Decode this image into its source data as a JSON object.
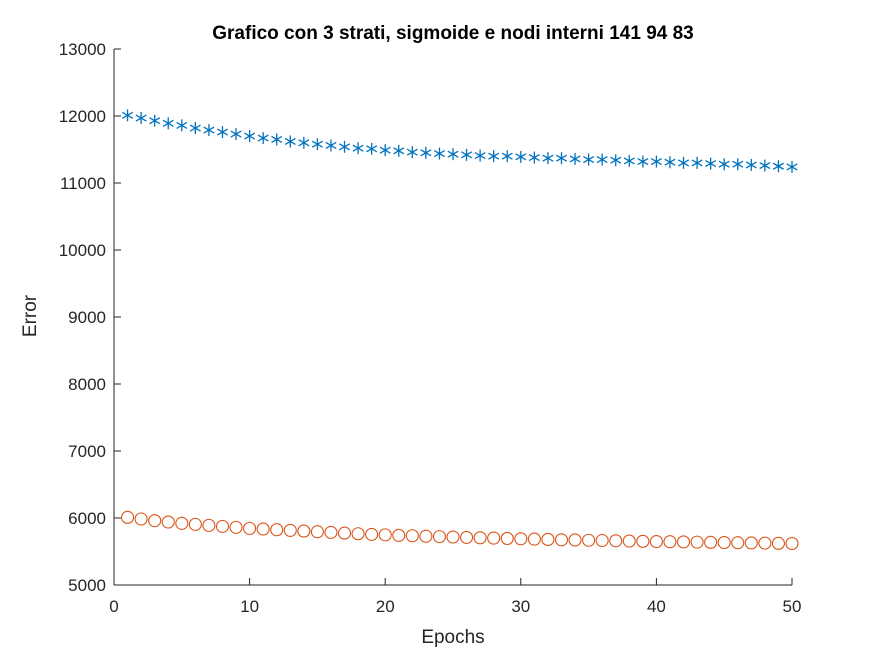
{
  "chart_data": {
    "type": "scatter",
    "title": "Grafico con 3 strati, sigmoide e nodi interni 141   94   83",
    "xlabel": "Epochs",
    "ylabel": "Error",
    "xlim": [
      0,
      50
    ],
    "ylim": [
      5000,
      13000
    ],
    "xticks": [
      0,
      10,
      20,
      30,
      40,
      50
    ],
    "yticks": [
      5000,
      6000,
      7000,
      8000,
      9000,
      10000,
      11000,
      12000,
      13000
    ],
    "grid": false,
    "legend": "none",
    "x": [
      1,
      2,
      3,
      4,
      5,
      6,
      7,
      8,
      9,
      10,
      11,
      12,
      13,
      14,
      15,
      16,
      17,
      18,
      19,
      20,
      21,
      22,
      23,
      24,
      25,
      26,
      27,
      28,
      29,
      30,
      31,
      32,
      33,
      34,
      35,
      36,
      37,
      38,
      39,
      40,
      41,
      42,
      43,
      44,
      45,
      46,
      47,
      48,
      49,
      50
    ],
    "series": [
      {
        "marker": "asterisk",
        "color": "#0072BD",
        "values": [
          12010,
          11970,
          11930,
          11890,
          11860,
          11820,
          11790,
          11760,
          11730,
          11700,
          11670,
          11650,
          11620,
          11600,
          11580,
          11560,
          11540,
          11520,
          11510,
          11490,
          11480,
          11460,
          11450,
          11440,
          11430,
          11420,
          11410,
          11400,
          11400,
          11390,
          11380,
          11370,
          11370,
          11360,
          11350,
          11350,
          11340,
          11330,
          11320,
          11320,
          11310,
          11300,
          11300,
          11290,
          11280,
          11280,
          11270,
          11260,
          11250,
          11240
        ]
      },
      {
        "marker": "circle",
        "color": "#D95319",
        "values": [
          6010,
          5985,
          5960,
          5940,
          5920,
          5905,
          5890,
          5875,
          5860,
          5845,
          5835,
          5825,
          5815,
          5805,
          5795,
          5785,
          5775,
          5765,
          5755,
          5748,
          5740,
          5735,
          5728,
          5722,
          5716,
          5710,
          5705,
          5700,
          5695,
          5690,
          5685,
          5680,
          5675,
          5672,
          5668,
          5664,
          5660,
          5656,
          5652,
          5649,
          5646,
          5643,
          5640,
          5637,
          5634,
          5631,
          5628,
          5625,
          5622,
          5619
        ]
      }
    ]
  }
}
